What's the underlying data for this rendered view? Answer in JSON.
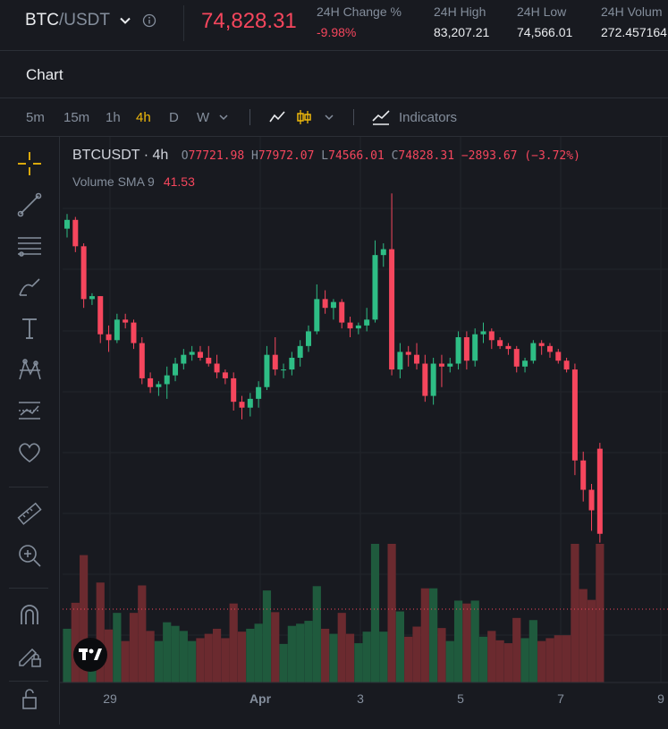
{
  "header": {
    "base": "BTC",
    "quote": "/USDT",
    "last_price": "74,828.31",
    "stats": [
      {
        "label": "24H Change %",
        "value": "-9.98%",
        "negative": true
      },
      {
        "label": "24H High",
        "value": "83,207.21",
        "negative": false
      },
      {
        "label": "24H Low",
        "value": "74,566.01",
        "negative": false
      },
      {
        "label": "24H Volum",
        "value": "272.457164",
        "negative": false
      }
    ]
  },
  "tabs": {
    "chart": "Chart"
  },
  "toolbar": {
    "intervals": [
      "5m",
      "15m",
      "1h",
      "4h",
      "D",
      "W"
    ],
    "active_interval": "4h",
    "indicators_label": "Indicators"
  },
  "left_tools": [
    "crosshair-icon",
    "trend-line-icon",
    "horizontal-lines-icon",
    "brush-icon",
    "text-icon",
    "pattern-icon",
    "forecast-icon",
    "favorite-icon",
    "ruler-icon",
    "zoom-in-icon",
    "magnet-icon",
    "lock-drawing-icon",
    "lock-icon"
  ],
  "legend": {
    "symbol": "BTCUSDT · 4h",
    "o_label": "O",
    "o": "77721.98",
    "h_label": "H",
    "h": "77972.07",
    "l_label": "L",
    "l": "74566.01",
    "c_label": "C",
    "c": "74828.31",
    "change": "−2893.67 (−3.72%)",
    "volume_label": "Volume SMA 9",
    "volume_value": "41.53"
  },
  "colors": {
    "up": "#2ebd85",
    "down": "#f6465d",
    "vol_up": "#1f5a3d",
    "vol_down": "#6b2a2f",
    "accent": "#f0b90b",
    "background": "#181a20"
  },
  "chart_data": {
    "type": "candlestick",
    "x_tick_labels": [
      "29",
      "Apr",
      "3",
      "5",
      "7",
      "9"
    ],
    "price_range": [
      74000,
      86500
    ],
    "candles": [
      [
        85200,
        85700,
        84900,
        85500
      ],
      [
        85500,
        85600,
        84400,
        84600
      ],
      [
        84600,
        84700,
        82500,
        82800
      ],
      [
        82800,
        83000,
        82600,
        82900
      ],
      [
        82900,
        82900,
        81300,
        81600
      ],
      [
        81600,
        81900,
        81000,
        81400
      ],
      [
        81400,
        82300,
        81300,
        82100
      ],
      [
        82100,
        82300,
        81800,
        82000
      ],
      [
        82000,
        82100,
        81100,
        81300
      ],
      [
        81300,
        81500,
        79900,
        80100
      ],
      [
        80100,
        80300,
        79600,
        79800
      ],
      [
        79800,
        80000,
        79500,
        79900
      ],
      [
        79900,
        80500,
        79400,
        80200
      ],
      [
        80200,
        80800,
        80000,
        80600
      ],
      [
        80600,
        81100,
        80400,
        80900
      ],
      [
        80900,
        81200,
        80700,
        81000
      ],
      [
        81000,
        81200,
        80700,
        80800
      ],
      [
        80800,
        81200,
        80500,
        80600
      ],
      [
        80600,
        80900,
        80100,
        80300
      ],
      [
        80300,
        80400,
        79900,
        80100
      ],
      [
        80100,
        80300,
        79000,
        79300
      ],
      [
        79300,
        79500,
        78700,
        79100
      ],
      [
        79100,
        79600,
        78800,
        79400
      ],
      [
        79400,
        80000,
        79100,
        79800
      ],
      [
        79800,
        81200,
        79700,
        80900
      ],
      [
        80900,
        81500,
        80200,
        80400
      ],
      [
        80400,
        80600,
        80100,
        80400
      ],
      [
        80400,
        81000,
        80200,
        80800
      ],
      [
        80800,
        81400,
        80500,
        81200
      ],
      [
        81200,
        81900,
        81000,
        81700
      ],
      [
        81700,
        83300,
        81600,
        82800
      ],
      [
        82800,
        83100,
        82300,
        82500
      ],
      [
        82500,
        82800,
        82100,
        82700
      ],
      [
        82700,
        82800,
        81800,
        82000
      ],
      [
        82000,
        82200,
        81500,
        81800
      ],
      [
        81800,
        82000,
        81600,
        81900
      ],
      [
        81900,
        82500,
        81700,
        82100
      ],
      [
        82100,
        84800,
        82000,
        84300
      ],
      [
        84300,
        84700,
        83900,
        84500
      ],
      [
        84500,
        86400,
        80200,
        80400
      ],
      [
        80400,
        81300,
        80100,
        81000
      ],
      [
        81000,
        81200,
        80500,
        80900
      ],
      [
        80900,
        81300,
        80400,
        80600
      ],
      [
        80600,
        80900,
        79300,
        79500
      ],
      [
        79500,
        80800,
        79200,
        80600
      ],
      [
        80600,
        80900,
        79800,
        80500
      ],
      [
        80500,
        80800,
        80300,
        80600
      ],
      [
        80600,
        81700,
        80400,
        81500
      ],
      [
        81500,
        81700,
        80400,
        80700
      ],
      [
        80700,
        81800,
        80500,
        81600
      ],
      [
        81600,
        82000,
        81300,
        81700
      ],
      [
        81700,
        81800,
        81100,
        81400
      ],
      [
        81400,
        81500,
        81100,
        81200
      ],
      [
        81200,
        81300,
        80900,
        81100
      ],
      [
        81100,
        81200,
        80300,
        80500
      ],
      [
        80500,
        80800,
        80300,
        80700
      ],
      [
        80700,
        81400,
        80600,
        81300
      ],
      [
        81300,
        81400,
        80900,
        81200
      ],
      [
        81200,
        81300,
        80800,
        81000
      ],
      [
        81000,
        81100,
        80600,
        80700
      ],
      [
        80700,
        80800,
        80300,
        80400
      ],
      [
        80400,
        80600,
        76800,
        77300
      ],
      [
        77300,
        77600,
        75900,
        76300
      ],
      [
        76300,
        76500,
        74900,
        75600
      ],
      [
        77700,
        77900,
        74500,
        74800
      ]
    ],
    "volume_sma_9": 41.53
  }
}
